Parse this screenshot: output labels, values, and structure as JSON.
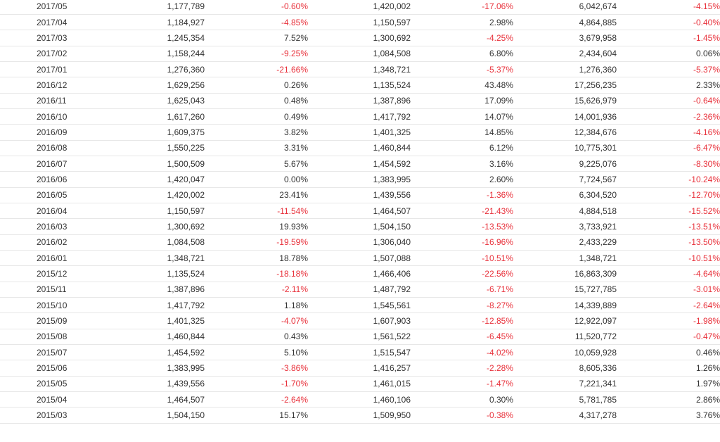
{
  "table": {
    "rows": [
      [
        "2017/05",
        "1,177,789",
        "-0.60%",
        "1,420,002",
        "-17.06%",
        "6,042,674",
        "-4.15%"
      ],
      [
        "2017/04",
        "1,184,927",
        "-4.85%",
        "1,150,597",
        "2.98%",
        "4,864,885",
        "-0.40%"
      ],
      [
        "2017/03",
        "1,245,354",
        "7.52%",
        "1,300,692",
        "-4.25%",
        "3,679,958",
        "-1.45%"
      ],
      [
        "2017/02",
        "1,158,244",
        "-9.25%",
        "1,084,508",
        "6.80%",
        "2,434,604",
        "0.06%"
      ],
      [
        "2017/01",
        "1,276,360",
        "-21.66%",
        "1,348,721",
        "-5.37%",
        "1,276,360",
        "-5.37%"
      ],
      [
        "2016/12",
        "1,629,256",
        "0.26%",
        "1,135,524",
        "43.48%",
        "17,256,235",
        "2.33%"
      ],
      [
        "2016/11",
        "1,625,043",
        "0.48%",
        "1,387,896",
        "17.09%",
        "15,626,979",
        "-0.64%"
      ],
      [
        "2016/10",
        "1,617,260",
        "0.49%",
        "1,417,792",
        "14.07%",
        "14,001,936",
        "-2.36%"
      ],
      [
        "2016/09",
        "1,609,375",
        "3.82%",
        "1,401,325",
        "14.85%",
        "12,384,676",
        "-4.16%"
      ],
      [
        "2016/08",
        "1,550,225",
        "3.31%",
        "1,460,844",
        "6.12%",
        "10,775,301",
        "-6.47%"
      ],
      [
        "2016/07",
        "1,500,509",
        "5.67%",
        "1,454,592",
        "3.16%",
        "9,225,076",
        "-8.30%"
      ],
      [
        "2016/06",
        "1,420,047",
        "0.00%",
        "1,383,995",
        "2.60%",
        "7,724,567",
        "-10.24%"
      ],
      [
        "2016/05",
        "1,420,002",
        "23.41%",
        "1,439,556",
        "-1.36%",
        "6,304,520",
        "-12.70%"
      ],
      [
        "2016/04",
        "1,150,597",
        "-11.54%",
        "1,464,507",
        "-21.43%",
        "4,884,518",
        "-15.52%"
      ],
      [
        "2016/03",
        "1,300,692",
        "19.93%",
        "1,504,150",
        "-13.53%",
        "3,733,921",
        "-13.51%"
      ],
      [
        "2016/02",
        "1,084,508",
        "-19.59%",
        "1,306,040",
        "-16.96%",
        "2,433,229",
        "-13.50%"
      ],
      [
        "2016/01",
        "1,348,721",
        "18.78%",
        "1,507,088",
        "-10.51%",
        "1,348,721",
        "-10.51%"
      ],
      [
        "2015/12",
        "1,135,524",
        "-18.18%",
        "1,466,406",
        "-22.56%",
        "16,863,309",
        "-4.64%"
      ],
      [
        "2015/11",
        "1,387,896",
        "-2.11%",
        "1,487,792",
        "-6.71%",
        "15,727,785",
        "-3.01%"
      ],
      [
        "2015/10",
        "1,417,792",
        "1.18%",
        "1,545,561",
        "-8.27%",
        "14,339,889",
        "-2.64%"
      ],
      [
        "2015/09",
        "1,401,325",
        "-4.07%",
        "1,607,903",
        "-12.85%",
        "12,922,097",
        "-1.98%"
      ],
      [
        "2015/08",
        "1,460,844",
        "0.43%",
        "1,561,522",
        "-6.45%",
        "11,520,772",
        "-0.47%"
      ],
      [
        "2015/07",
        "1,454,592",
        "5.10%",
        "1,515,547",
        "-4.02%",
        "10,059,928",
        "0.46%"
      ],
      [
        "2015/06",
        "1,383,995",
        "-3.86%",
        "1,416,257",
        "-2.28%",
        "8,605,336",
        "1.26%"
      ],
      [
        "2015/05",
        "1,439,556",
        "-1.70%",
        "1,461,015",
        "-1.47%",
        "7,221,341",
        "1.97%"
      ],
      [
        "2015/04",
        "1,464,507",
        "-2.64%",
        "1,460,106",
        "0.30%",
        "5,781,785",
        "2.86%"
      ],
      [
        "2015/03",
        "1,504,150",
        "15.17%",
        "1,509,950",
        "-0.38%",
        "4,317,278",
        "3.76%"
      ]
    ]
  },
  "colors": {
    "negative": "#e8303a",
    "text": "#333333",
    "row_border": "#e7e7e7"
  }
}
